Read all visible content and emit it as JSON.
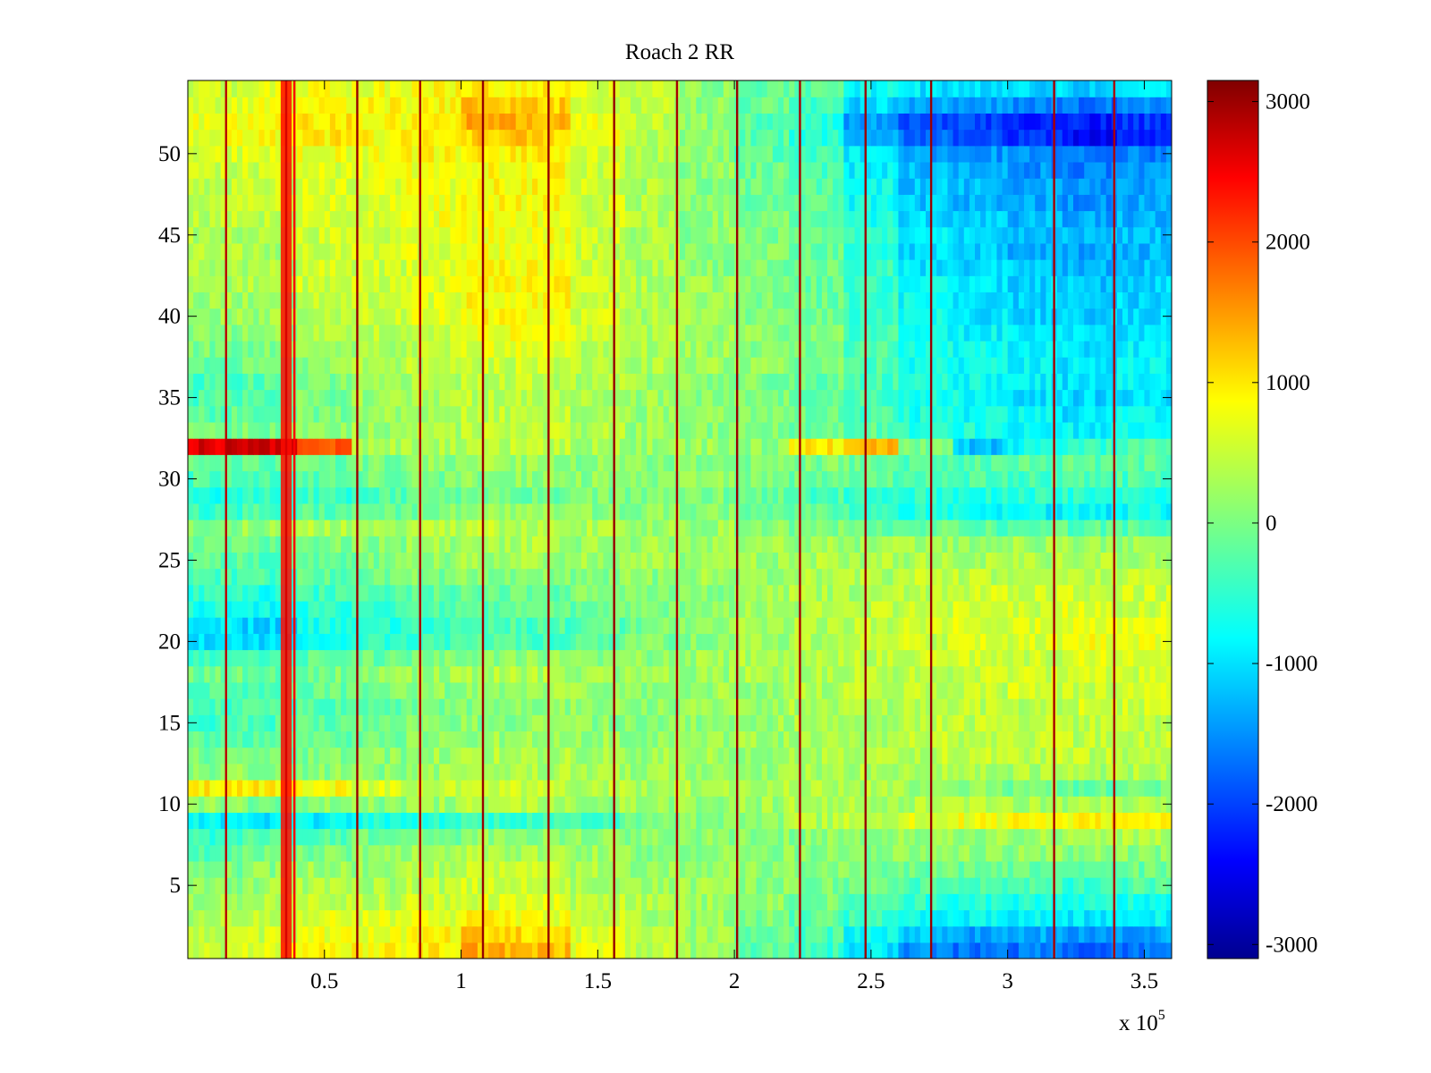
{
  "chart_data": {
    "type": "heatmap",
    "title": "Roach 2 RR",
    "xlabel": "",
    "ylabel": "",
    "x_scale_label": "x 10",
    "x_scale_exponent": "5",
    "xlim": [
      0,
      360000
    ],
    "ylim": [
      0.5,
      54.5
    ],
    "n_rows": 54,
    "x_ticks": [
      {
        "value": 50000,
        "label": "0.5"
      },
      {
        "value": 100000,
        "label": "1"
      },
      {
        "value": 150000,
        "label": "1.5"
      },
      {
        "value": 200000,
        "label": "2"
      },
      {
        "value": 250000,
        "label": "2.5"
      },
      {
        "value": 300000,
        "label": "3"
      },
      {
        "value": 350000,
        "label": "3.5"
      }
    ],
    "y_ticks": [
      {
        "value": 5,
        "label": "5"
      },
      {
        "value": 10,
        "label": "10"
      },
      {
        "value": 15,
        "label": "15"
      },
      {
        "value": 20,
        "label": "20"
      },
      {
        "value": 25,
        "label": "25"
      },
      {
        "value": 30,
        "label": "30"
      },
      {
        "value": 35,
        "label": "35"
      },
      {
        "value": 40,
        "label": "40"
      },
      {
        "value": 45,
        "label": "45"
      },
      {
        "value": 50,
        "label": "50"
      }
    ],
    "colorbar": {
      "colormap": "jet",
      "clim": [
        -3100,
        3150
      ],
      "ticks": [
        {
          "value": 3000,
          "label": "3000"
        },
        {
          "value": 2000,
          "label": "2000"
        },
        {
          "value": 1000,
          "label": "1000"
        },
        {
          "value": 0,
          "label": "0"
        },
        {
          "value": -1000,
          "label": "-1000"
        },
        {
          "value": -2000,
          "label": "-2000"
        },
        {
          "value": -3000,
          "label": "-3000"
        }
      ]
    },
    "column_bins": [
      {
        "x_start": 0,
        "x_end": 20000,
        "values": [
          400,
          400,
          300,
          200,
          100,
          0,
          -200,
          -400,
          -800,
          100,
          900,
          100,
          0,
          -200,
          -400,
          -300,
          -200,
          -100,
          -400,
          -900,
          -900,
          -600,
          -500,
          -300,
          -200,
          -100,
          100,
          -400,
          -600,
          -300,
          -200,
          2600,
          -100,
          -200,
          -300,
          -300,
          -100,
          0,
          100,
          200,
          200,
          300,
          300,
          300,
          300,
          400,
          400,
          400,
          500,
          600,
          700,
          700,
          600,
          500
        ]
      },
      {
        "x_start": 20000,
        "x_end": 40000,
        "values": [
          600,
          500,
          400,
          300,
          200,
          100,
          -100,
          -300,
          -900,
          0,
          900,
          0,
          -100,
          -200,
          -300,
          -300,
          -200,
          -100,
          -300,
          -1000,
          -1000,
          -700,
          -600,
          -300,
          -200,
          -100,
          200,
          -300,
          -500,
          -300,
          -200,
          2700,
          0,
          -100,
          -200,
          -200,
          -100,
          0,
          100,
          200,
          200,
          300,
          300,
          300,
          300,
          400,
          500,
          500,
          500,
          600,
          800,
          900,
          700,
          600
        ]
      },
      {
        "x_start": 40000,
        "x_end": 60000,
        "values": [
          800,
          700,
          600,
          400,
          300,
          200,
          0,
          -200,
          -800,
          100,
          800,
          100,
          0,
          -100,
          -200,
          -200,
          -100,
          0,
          -200,
          -600,
          -600,
          -500,
          -400,
          -200,
          -100,
          0,
          300,
          -200,
          -400,
          -200,
          -100,
          1800,
          100,
          0,
          0,
          0,
          100,
          200,
          300,
          400,
          400,
          500,
          500,
          500,
          500,
          600,
          600,
          600,
          600,
          700,
          900,
          900,
          800,
          700
        ]
      },
      {
        "x_start": 60000,
        "x_end": 80000,
        "values": [
          800,
          700,
          600,
          400,
          300,
          200,
          100,
          -100,
          -600,
          100,
          600,
          100,
          100,
          0,
          -100,
          -100,
          0,
          100,
          -100,
          -500,
          -500,
          -400,
          -300,
          -100,
          0,
          100,
          300,
          -100,
          -300,
          -100,
          0,
          300,
          200,
          200,
          200,
          200,
          300,
          300,
          400,
          500,
          500,
          500,
          500,
          500,
          500,
          600,
          600,
          600,
          600,
          700,
          800,
          800,
          800,
          700
        ]
      },
      {
        "x_start": 80000,
        "x_end": 100000,
        "values": [
          900,
          800,
          600,
          500,
          400,
          300,
          200,
          0,
          -500,
          200,
          500,
          200,
          200,
          100,
          0,
          0,
          100,
          200,
          0,
          -400,
          -400,
          -300,
          -200,
          0,
          100,
          200,
          300,
          0,
          -200,
          0,
          100,
          300,
          300,
          300,
          300,
          300,
          400,
          400,
          500,
          600,
          600,
          600,
          600,
          600,
          600,
          700,
          700,
          700,
          700,
          800,
          900,
          900,
          800,
          800
        ]
      },
      {
        "x_start": 100000,
        "x_end": 120000,
        "values": [
          1300,
          1100,
          800,
          600,
          500,
          400,
          300,
          100,
          -400,
          300,
          500,
          300,
          300,
          200,
          100,
          100,
          200,
          300,
          100,
          -300,
          -300,
          -200,
          -100,
          100,
          200,
          300,
          400,
          100,
          -100,
          100,
          200,
          400,
          400,
          400,
          400,
          400,
          500,
          600,
          700,
          800,
          800,
          800,
          800,
          700,
          700,
          800,
          800,
          800,
          800,
          900,
          1100,
          1300,
          1200,
          900
        ]
      },
      {
        "x_start": 120000,
        "x_end": 140000,
        "values": [
          1200,
          1000,
          700,
          600,
          500,
          400,
          300,
          100,
          -400,
          300,
          500,
          300,
          300,
          200,
          100,
          100,
          200,
          300,
          100,
          -300,
          -300,
          -200,
          -100,
          100,
          200,
          300,
          400,
          100,
          -100,
          100,
          200,
          400,
          400,
          400,
          400,
          400,
          500,
          600,
          700,
          800,
          800,
          800,
          800,
          700,
          700,
          800,
          800,
          800,
          800,
          900,
          1100,
          1200,
          1100,
          900
        ]
      },
      {
        "x_start": 140000,
        "x_end": 160000,
        "values": [
          700,
          600,
          500,
          400,
          300,
          300,
          200,
          100,
          -300,
          200,
          400,
          200,
          200,
          200,
          100,
          100,
          200,
          200,
          100,
          -200,
          -200,
          -100,
          0,
          100,
          200,
          200,
          300,
          100,
          0,
          100,
          100,
          300,
          300,
          300,
          300,
          300,
          400,
          400,
          500,
          500,
          500,
          500,
          500,
          500,
          500,
          500,
          500,
          500,
          500,
          600,
          700,
          700,
          600,
          600
        ]
      },
      {
        "x_start": 160000,
        "x_end": 180000,
        "values": [
          400,
          400,
          300,
          300,
          200,
          200,
          100,
          100,
          0,
          200,
          300,
          200,
          200,
          100,
          100,
          100,
          100,
          200,
          100,
          0,
          0,
          0,
          100,
          100,
          200,
          200,
          200,
          100,
          0,
          100,
          100,
          200,
          200,
          200,
          200,
          200,
          300,
          300,
          300,
          300,
          300,
          300,
          300,
          300,
          300,
          300,
          300,
          300,
          300,
          300,
          400,
          400,
          400,
          400
        ]
      },
      {
        "x_start": 180000,
        "x_end": 200000,
        "values": [
          200,
          200,
          200,
          200,
          200,
          200,
          100,
          100,
          100,
          200,
          300,
          200,
          200,
          200,
          100,
          200,
          200,
          200,
          200,
          100,
          100,
          100,
          100,
          200,
          200,
          200,
          200,
          100,
          0,
          100,
          100,
          200,
          100,
          100,
          100,
          100,
          200,
          200,
          200,
          200,
          200,
          200,
          100,
          100,
          100,
          100,
          100,
          100,
          100,
          100,
          100,
          100,
          100,
          100
        ]
      },
      {
        "x_start": 200000,
        "x_end": 220000,
        "values": [
          -200,
          -100,
          0,
          100,
          100,
          100,
          100,
          100,
          200,
          200,
          300,
          200,
          200,
          200,
          200,
          200,
          200,
          300,
          300,
          200,
          200,
          200,
          200,
          200,
          200,
          200,
          100,
          0,
          -100,
          0,
          0,
          100,
          0,
          0,
          0,
          0,
          100,
          100,
          100,
          0,
          0,
          0,
          0,
          0,
          0,
          0,
          -100,
          -100,
          -100,
          -200,
          -200,
          -200,
          -100,
          -100
        ]
      },
      {
        "x_start": 220000,
        "x_end": 240000,
        "values": [
          -400,
          -300,
          -200,
          0,
          0,
          100,
          100,
          100,
          300,
          300,
          300,
          300,
          300,
          300,
          300,
          300,
          300,
          300,
          300,
          300,
          300,
          300,
          300,
          300,
          300,
          200,
          0,
          -200,
          -300,
          -100,
          0,
          900,
          -100,
          -100,
          -100,
          -100,
          0,
          0,
          0,
          -100,
          -100,
          -100,
          -100,
          -100,
          -200,
          -200,
          -200,
          -200,
          -300,
          -400,
          -500,
          -500,
          -300,
          -200
        ]
      },
      {
        "x_start": 240000,
        "x_end": 260000,
        "values": [
          -900,
          -700,
          -400,
          -200,
          -100,
          0,
          100,
          200,
          500,
          300,
          300,
          300,
          300,
          300,
          300,
          300,
          400,
          400,
          400,
          400,
          400,
          400,
          300,
          300,
          300,
          200,
          -100,
          -300,
          -400,
          -200,
          -100,
          1300,
          -200,
          -300,
          -300,
          -300,
          -300,
          -300,
          -300,
          -400,
          -400,
          -400,
          -400,
          -500,
          -500,
          -600,
          -700,
          -700,
          -800,
          -900,
          -1200,
          -1300,
          -1000,
          -700
        ]
      },
      {
        "x_start": 260000,
        "x_end": 280000,
        "values": [
          -1400,
          -1100,
          -700,
          -500,
          -300,
          -100,
          100,
          200,
          600,
          300,
          200,
          300,
          400,
          400,
          400,
          400,
          400,
          400,
          500,
          500,
          500,
          500,
          400,
          400,
          300,
          200,
          -100,
          -600,
          -500,
          -300,
          -200,
          0,
          -500,
          -600,
          -600,
          -600,
          -600,
          -600,
          -700,
          -700,
          -700,
          -800,
          -900,
          -1000,
          -900,
          -1000,
          -1100,
          -1100,
          -1200,
          -1300,
          -1700,
          -1800,
          -1300,
          -900
        ]
      },
      {
        "x_start": 280000,
        "x_end": 300000,
        "values": [
          -1600,
          -1300,
          -800,
          -600,
          -300,
          -100,
          100,
          200,
          700,
          300,
          100,
          300,
          400,
          400,
          400,
          400,
          400,
          500,
          500,
          600,
          600,
          500,
          500,
          400,
          300,
          200,
          -200,
          -700,
          -500,
          -300,
          -200,
          -1100,
          -600,
          -700,
          -700,
          -700,
          -700,
          -700,
          -800,
          -900,
          -900,
          -900,
          -1000,
          -1100,
          -1000,
          -1100,
          -1200,
          -1200,
          -1300,
          -1400,
          -1900,
          -1900,
          -1400,
          -900
        ]
      },
      {
        "x_start": 300000,
        "x_end": 320000,
        "values": [
          -1600,
          -1300,
          -800,
          -600,
          -300,
          -100,
          100,
          200,
          800,
          300,
          0,
          300,
          400,
          400,
          400,
          400,
          500,
          500,
          500,
          600,
          600,
          500,
          500,
          400,
          300,
          200,
          -200,
          -800,
          -500,
          -300,
          -200,
          -700,
          -700,
          -800,
          -900,
          -800,
          -800,
          -800,
          -900,
          -1000,
          -1000,
          -1000,
          -1100,
          -1200,
          -1100,
          -1200,
          -1300,
          -1300,
          -1400,
          -1500,
          -2100,
          -2100,
          -1500,
          -1000
        ]
      },
      {
        "x_start": 320000,
        "x_end": 340000,
        "values": [
          -1700,
          -1400,
          -900,
          -600,
          -400,
          -100,
          100,
          300,
          800,
          300,
          -100,
          300,
          400,
          400,
          400,
          500,
          500,
          500,
          600,
          700,
          600,
          600,
          500,
          400,
          300,
          200,
          -200,
          -800,
          -500,
          -300,
          -200,
          -400,
          -800,
          -900,
          -1000,
          -900,
          -900,
          -900,
          -900,
          -1100,
          -1100,
          -1100,
          -1200,
          -1300,
          -1200,
          -1300,
          -1400,
          -1400,
          -1500,
          -1600,
          -2300,
          -2200,
          -1600,
          -1000
        ]
      },
      {
        "x_start": 340000,
        "x_end": 360000,
        "values": [
          -1600,
          -1300,
          -800,
          -600,
          -300,
          -100,
          100,
          300,
          800,
          300,
          -100,
          300,
          400,
          400,
          400,
          500,
          500,
          500,
          600,
          700,
          600,
          500,
          500,
          400,
          300,
          200,
          -200,
          -700,
          -500,
          -300,
          -200,
          -300,
          -700,
          -800,
          -900,
          -800,
          -800,
          -800,
          -900,
          -1000,
          -1000,
          -1000,
          -1100,
          -1200,
          -1100,
          -1200,
          -1300,
          -1300,
          -1400,
          -1500,
          -2100,
          -2000,
          -1500,
          -900
        ]
      }
    ],
    "vertical_spike_lines": [
      {
        "x": 14000,
        "value": 2800
      },
      {
        "x": 36000,
        "value": 2600
      },
      {
        "x": 39000,
        "value": 2400
      },
      {
        "x": 62000,
        "value": 3000
      },
      {
        "x": 85000,
        "value": 2900
      },
      {
        "x": 108000,
        "value": 3000
      },
      {
        "x": 132000,
        "value": 3000
      },
      {
        "x": 156000,
        "value": 3000
      },
      {
        "x": 179000,
        "value": 2900
      },
      {
        "x": 201000,
        "value": 3000
      },
      {
        "x": 224000,
        "value": 2900
      },
      {
        "x": 248000,
        "value": 3000
      },
      {
        "x": 272000,
        "value": 3000
      },
      {
        "x": 317000,
        "value": 2900
      },
      {
        "x": 339000,
        "value": 2900
      }
    ],
    "vertical_band": {
      "x_start": 34000,
      "x_end": 38000,
      "value": 2300
    }
  }
}
